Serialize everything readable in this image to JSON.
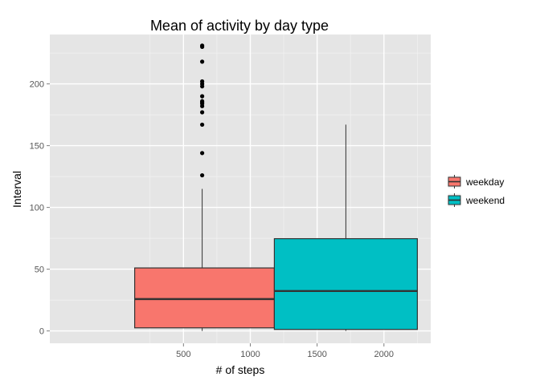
{
  "chart_data": {
    "type": "box",
    "title": "Mean of activity by day type",
    "xlabel": "# of steps",
    "ylabel": "Interval",
    "xlim": [
      -500,
      2350
    ],
    "ylim": [
      -10,
      240
    ],
    "x_ticks": [
      500,
      1000,
      1500,
      2000
    ],
    "x_minor_ticks": [
      250,
      750,
      1250,
      1750,
      2250
    ],
    "y_ticks": [
      0,
      50,
      100,
      150,
      200
    ],
    "y_minor_ticks": [
      25,
      75,
      125,
      175,
      225
    ],
    "grid": true,
    "legend": {
      "placement": "right",
      "items": [
        "weekday",
        "weekend"
      ]
    },
    "colors": {
      "panel": "#e5e5e5",
      "grid": "#ffffff",
      "axis_text": "#555555"
    },
    "series": [
      {
        "name": "weekday",
        "color": "#f8766d",
        "x_left": 135,
        "x_right": 1180,
        "x_whisker": 640,
        "q1": 2.5,
        "median": 25.8,
        "q3": 51,
        "whisker_low": 0,
        "whisker_high": 115,
        "outliers": [
          126,
          144,
          167,
          177,
          182,
          184,
          185,
          186,
          190,
          198,
          200,
          202,
          218,
          230,
          231
        ]
      },
      {
        "name": "weekend",
        "color": "#00bfc4",
        "x_left": 1180,
        "x_right": 2250,
        "x_whisker": 1715,
        "q1": 1.2,
        "median": 32.3,
        "q3": 74.7,
        "whisker_low": 0,
        "whisker_high": 167,
        "outliers": []
      }
    ]
  }
}
